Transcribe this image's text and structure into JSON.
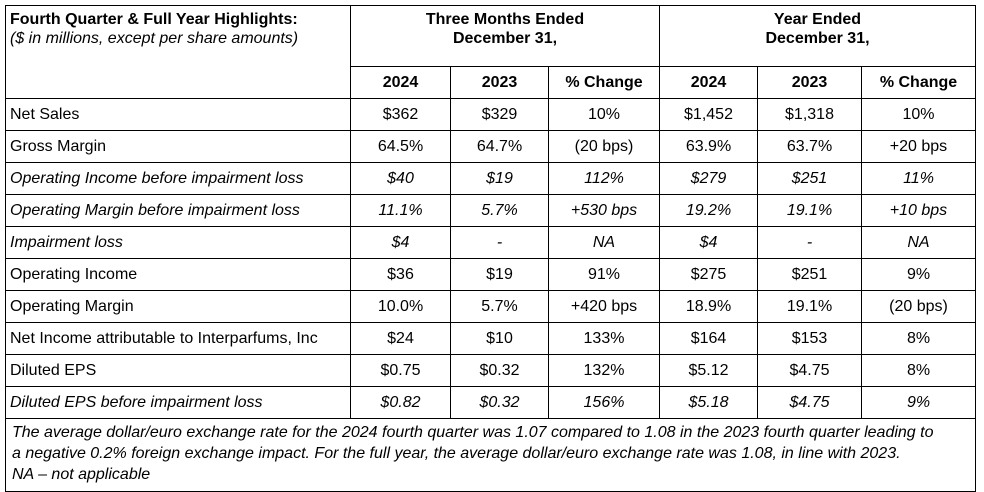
{
  "header": {
    "title": "Fourth Quarter & Full Year Highlights:",
    "subtitle": "($ in millions, except per share amounts)",
    "three_months_line1": "Three Months Ended",
    "three_months_line2": "December 31,",
    "year_line1": "Year Ended",
    "year_line2": "December 31,",
    "columns": [
      "2024",
      "2023",
      "% Change",
      "2024",
      "2023",
      "% Change"
    ]
  },
  "rows": [
    {
      "label": "Net Sales",
      "italic": false,
      "values": [
        "$362",
        "$329",
        "10%",
        "$1,452",
        "$1,318",
        "10%"
      ]
    },
    {
      "label": "Gross Margin",
      "italic": false,
      "values": [
        "64.5%",
        "64.7%",
        "(20 bps)",
        "63.9%",
        "63.7%",
        "+20 bps"
      ]
    },
    {
      "label": "Operating Income before impairment loss",
      "italic": true,
      "values": [
        "$40",
        "$19",
        "112%",
        "$279",
        "$251",
        "11%"
      ]
    },
    {
      "label": "Operating Margin before impairment loss",
      "italic": true,
      "values": [
        "11.1%",
        "5.7%",
        "+530 bps",
        "19.2%",
        "19.1%",
        "+10 bps"
      ]
    },
    {
      "label": "Impairment loss",
      "italic": true,
      "values": [
        "$4",
        "-",
        "NA",
        "$4",
        "-",
        "NA"
      ]
    },
    {
      "label": "Operating Income",
      "italic": false,
      "values": [
        "$36",
        "$19",
        "91%",
        "$275",
        "$251",
        "9%"
      ]
    },
    {
      "label": "Operating Margin",
      "italic": false,
      "values": [
        "10.0%",
        "5.7%",
        "+420 bps",
        "18.9%",
        "19.1%",
        "(20 bps)"
      ]
    },
    {
      "label": "Net Income attributable to Interparfums, Inc",
      "italic": false,
      "values": [
        "$24",
        "$10",
        "133%",
        "$164",
        "$153",
        "8%"
      ]
    },
    {
      "label": "Diluted EPS",
      "italic": false,
      "values": [
        "$0.75",
        "$0.32",
        "132%",
        "$5.12",
        "$4.75",
        "8%"
      ]
    },
    {
      "label": "Diluted EPS before impairment loss",
      "italic": true,
      "values": [
        "$0.82",
        "$0.32",
        "156%",
        "$5.18",
        "$4.75",
        "9%"
      ]
    }
  ],
  "footnote": {
    "line1": "The average dollar/euro exchange rate for the 2024 fourth quarter was 1.07 compared to 1.08 in the 2023 fourth quarter leading to",
    "line2": "a negative 0.2% foreign exchange impact. For the full year, the average dollar/euro exchange rate was 1.08, in line with 2023.",
    "line3": "NA – not applicable"
  }
}
